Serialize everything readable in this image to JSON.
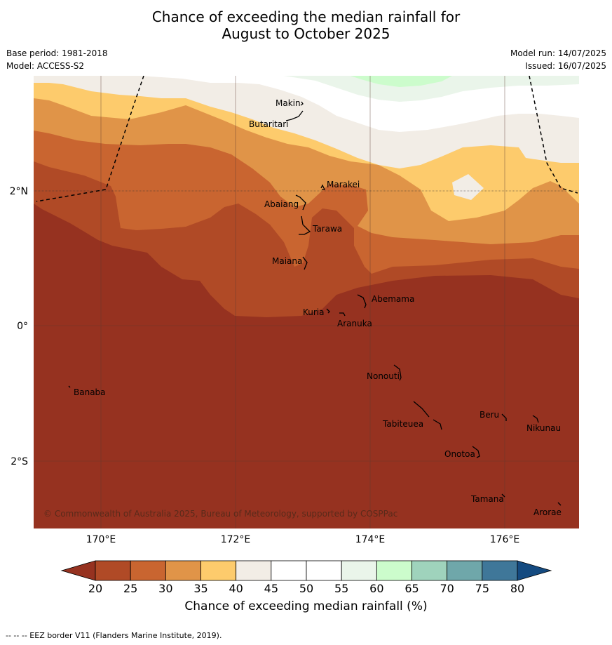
{
  "title_line1": "Chance of exceeding the median rainfall for",
  "title_line2": "August to October 2025",
  "base_period": "Base period: 1981-2018",
  "model": "Model: ACCESS-S2",
  "model_run": "Model run: 14/07/2025",
  "issued": "Issued: 16/07/2025",
  "copyright": "© Commonwealth of Australia 2025, Bureau of Meteorology, supported by COSPPac",
  "footer": "--  --  -- EEZ border V11 (Flanders Marine Institute, 2019).",
  "lon_ticks": [
    "170°E",
    "172°E",
    "174°E",
    "176°E"
  ],
  "lat_ticks": [
    "2°N",
    "0°",
    "2°S"
  ],
  "places": [
    "Makin",
    "Butaritari",
    "Marakei",
    "Abaiang",
    "Tarawa",
    "Maiana",
    "Abemama",
    "Kuria",
    "Aranuka",
    "Nonouti",
    "Banaba",
    "Beru",
    "Nikunau",
    "Tabiteuea",
    "Onotoa",
    "Tamana",
    "Arorae"
  ],
  "colorbar": {
    "title": "Chance of exceeding median rainfall (%)",
    "labels": [
      "20",
      "25",
      "30",
      "35",
      "40",
      "45",
      "50",
      "55",
      "60",
      "65",
      "70",
      "75",
      "80"
    ],
    "colors": [
      "#963220",
      "#b04a26",
      "#c96530",
      "#e09448",
      "#fdcb6c",
      "#f2ede6",
      "#ffffff",
      "#ffffff",
      "#eaf5ea",
      "#ccfccc",
      "#9fd3bc",
      "#6fa7aa",
      "#3f7799",
      "#144a80"
    ]
  }
}
